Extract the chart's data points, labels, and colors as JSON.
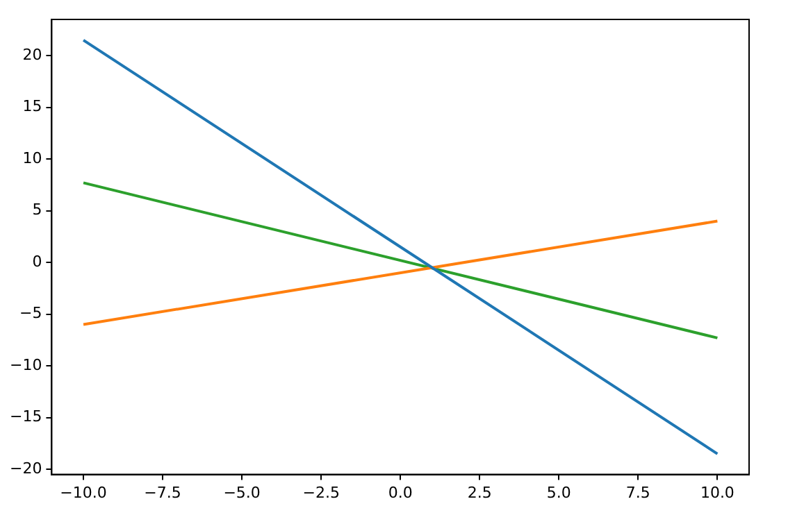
{
  "chart_data": {
    "type": "line",
    "x": [
      -10,
      10
    ],
    "series": [
      {
        "color": "#1f77b4",
        "values": [
          21.5,
          -18.5
        ]
      },
      {
        "color": "#ff7f0e",
        "values": [
          -6,
          4
        ]
      },
      {
        "color": "#2ca02c",
        "values": [
          7.7,
          -7.3
        ]
      }
    ],
    "xlim": [
      -11,
      11
    ],
    "xticks": [
      {
        "value": -10,
        "label": "−10.0"
      },
      {
        "value": -7.5,
        "label": "−7.5"
      },
      {
        "value": -5,
        "label": "−5.0"
      },
      {
        "value": -2.5,
        "label": "−2.5"
      },
      {
        "value": 0,
        "label": "0.0"
      },
      {
        "value": 2.5,
        "label": "2.5"
      },
      {
        "value": 5,
        "label": "5.0"
      },
      {
        "value": 7.5,
        "label": "7.5"
      },
      {
        "value": 10,
        "label": "10.0"
      }
    ],
    "ylim": [
      -20.5,
      23.5
    ],
    "yticks": [
      {
        "value": -20,
        "label": "−20"
      },
      {
        "value": -15,
        "label": "−15"
      },
      {
        "value": -10,
        "label": "−10"
      },
      {
        "value": -5,
        "label": "−5"
      },
      {
        "value": 0,
        "label": "0"
      },
      {
        "value": 5,
        "label": "5"
      },
      {
        "value": 10,
        "label": "10"
      },
      {
        "value": 15,
        "label": "15"
      },
      {
        "value": 20,
        "label": "20"
      }
    ],
    "grid": false,
    "legend": false,
    "marker": "none",
    "line_style": "solid"
  }
}
